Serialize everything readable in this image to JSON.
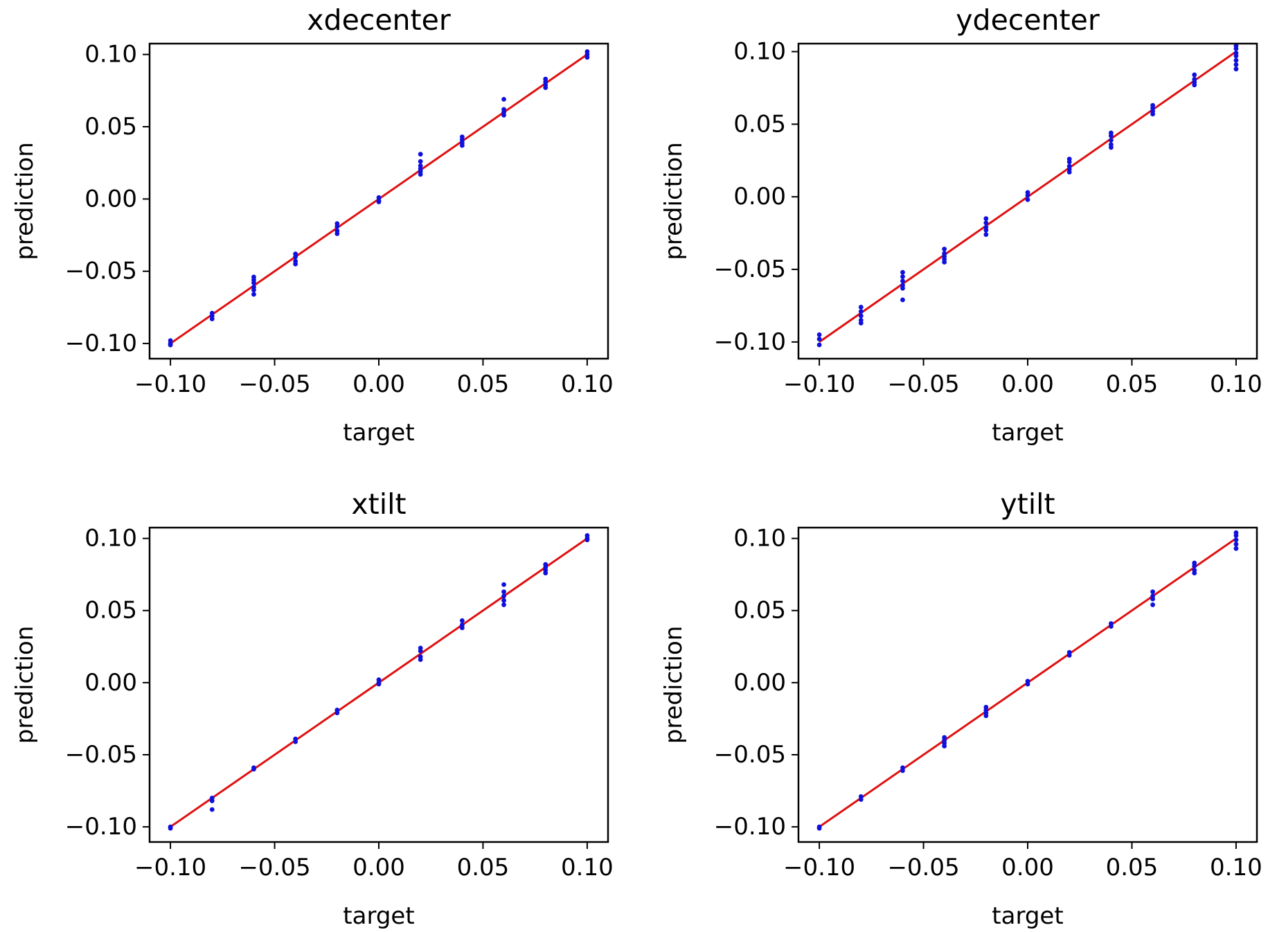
{
  "chart_data": [
    {
      "type": "scatter",
      "title": "xdecenter",
      "xlabel": "target",
      "ylabel": "prediction",
      "xlim": [
        -0.11,
        0.11
      ],
      "ylim": [
        -0.1105,
        0.1075
      ],
      "xticks": [
        "−0.10",
        "−0.05",
        "0.00",
        "0.05",
        "0.10"
      ],
      "yticks": [
        "−0.10",
        "−0.05",
        "0.00",
        "0.05",
        "0.10"
      ],
      "grid": false,
      "colors": {
        "points": "#1010dd",
        "line": "#e01010"
      },
      "reference_line": {
        "name": "y = x",
        "x": [
          -0.1,
          0.1
        ],
        "y": [
          -0.1,
          0.1
        ]
      },
      "series": [
        {
          "name": "predictions",
          "x": [
            -0.1,
            -0.1,
            -0.1,
            -0.08,
            -0.08,
            -0.08,
            -0.06,
            -0.06,
            -0.06,
            -0.06,
            -0.06,
            -0.06,
            -0.04,
            -0.04,
            -0.04,
            -0.04,
            -0.02,
            -0.02,
            -0.02,
            -0.02,
            0.0,
            0.0,
            0.0,
            0.02,
            0.02,
            0.02,
            0.02,
            0.02,
            0.02,
            0.04,
            0.04,
            0.04,
            0.04,
            0.06,
            0.06,
            0.06,
            0.06,
            0.08,
            0.08,
            0.08,
            0.08,
            0.1,
            0.1,
            0.1
          ],
          "y": [
            -0.098,
            -0.1,
            -0.101,
            -0.079,
            -0.081,
            -0.083,
            -0.054,
            -0.056,
            -0.058,
            -0.061,
            -0.063,
            -0.066,
            -0.038,
            -0.04,
            -0.043,
            -0.045,
            -0.017,
            -0.019,
            -0.022,
            -0.024,
            0.001,
            -0.001,
            -0.002,
            0.031,
            0.026,
            0.023,
            0.021,
            0.019,
            0.017,
            0.043,
            0.041,
            0.039,
            0.037,
            0.069,
            0.062,
            0.06,
            0.058,
            0.083,
            0.081,
            0.079,
            0.077,
            0.102,
            0.1,
            0.098
          ]
        }
      ]
    },
    {
      "type": "scatter",
      "title": "ydecenter",
      "xlabel": "target",
      "ylabel": "prediction",
      "xlim": [
        -0.11,
        0.11
      ],
      "ylim": [
        -0.1115,
        0.1055
      ],
      "xticks": [
        "−0.10",
        "−0.05",
        "0.00",
        "0.05",
        "0.10"
      ],
      "yticks": [
        "−0.10",
        "−0.05",
        "0.00",
        "0.05",
        "0.10"
      ],
      "grid": false,
      "colors": {
        "points": "#1010dd",
        "line": "#e01010"
      },
      "reference_line": {
        "name": "y = x",
        "x": [
          -0.1,
          0.1
        ],
        "y": [
          -0.1,
          0.1
        ]
      },
      "series": [
        {
          "name": "predictions",
          "x": [
            -0.1,
            -0.1,
            -0.1,
            -0.08,
            -0.08,
            -0.08,
            -0.08,
            -0.08,
            -0.06,
            -0.06,
            -0.06,
            -0.06,
            -0.06,
            -0.06,
            -0.04,
            -0.04,
            -0.04,
            -0.04,
            -0.04,
            -0.02,
            -0.02,
            -0.02,
            -0.02,
            -0.02,
            0.0,
            0.0,
            0.0,
            0.02,
            0.02,
            0.02,
            0.02,
            0.02,
            0.04,
            0.04,
            0.04,
            0.04,
            0.04,
            0.06,
            0.06,
            0.06,
            0.06,
            0.08,
            0.08,
            0.08,
            0.08,
            0.1,
            0.1,
            0.1,
            0.1,
            0.1,
            0.1,
            0.1
          ],
          "y": [
            -0.095,
            -0.098,
            -0.102,
            -0.076,
            -0.079,
            -0.082,
            -0.085,
            -0.087,
            -0.052,
            -0.055,
            -0.058,
            -0.061,
            -0.063,
            -0.071,
            -0.036,
            -0.039,
            -0.041,
            -0.043,
            -0.045,
            -0.015,
            -0.018,
            -0.021,
            -0.023,
            -0.026,
            0.003,
            0.001,
            -0.002,
            0.026,
            0.024,
            0.021,
            0.019,
            0.017,
            0.044,
            0.042,
            0.039,
            0.036,
            0.034,
            0.063,
            0.061,
            0.059,
            0.057,
            0.084,
            0.081,
            0.079,
            0.077,
            0.104,
            0.102,
            0.099,
            0.097,
            0.094,
            0.091,
            0.088
          ]
        }
      ]
    },
    {
      "type": "scatter",
      "title": "xtilt",
      "xlabel": "target",
      "ylabel": "prediction",
      "xlim": [
        -0.11,
        0.11
      ],
      "ylim": [
        -0.1105,
        0.1075
      ],
      "xticks": [
        "−0.10",
        "−0.05",
        "0.00",
        "0.05",
        "0.10"
      ],
      "yticks": [
        "−0.10",
        "−0.05",
        "0.00",
        "0.05",
        "0.10"
      ],
      "grid": false,
      "colors": {
        "points": "#1010dd",
        "line": "#e01010"
      },
      "reference_line": {
        "name": "y = x",
        "x": [
          -0.1,
          0.1
        ],
        "y": [
          -0.1,
          0.1
        ]
      },
      "series": [
        {
          "name": "predictions",
          "x": [
            -0.1,
            -0.1,
            -0.08,
            -0.08,
            -0.08,
            -0.06,
            -0.06,
            -0.04,
            -0.04,
            -0.02,
            -0.02,
            0.0,
            0.0,
            0.0,
            0.02,
            0.02,
            0.02,
            0.02,
            0.04,
            0.04,
            0.04,
            0.06,
            0.06,
            0.06,
            0.06,
            0.06,
            0.08,
            0.08,
            0.08,
            0.08,
            0.1,
            0.1,
            0.1
          ],
          "y": [
            -0.1,
            -0.101,
            -0.08,
            -0.082,
            -0.088,
            -0.059,
            -0.06,
            -0.039,
            -0.041,
            -0.019,
            -0.021,
            0.002,
            0.0,
            -0.001,
            0.024,
            0.022,
            0.018,
            0.016,
            0.043,
            0.04,
            0.038,
            0.068,
            0.063,
            0.06,
            0.057,
            0.054,
            0.082,
            0.08,
            0.078,
            0.076,
            0.102,
            0.1,
            0.099
          ]
        }
      ]
    },
    {
      "type": "scatter",
      "title": "ytilt",
      "xlabel": "target",
      "ylabel": "prediction",
      "xlim": [
        -0.11,
        0.11
      ],
      "ylim": [
        -0.1105,
        0.1075
      ],
      "xticks": [
        "−0.10",
        "−0.05",
        "0.00",
        "0.05",
        "0.10"
      ],
      "yticks": [
        "−0.10",
        "−0.05",
        "0.00",
        "0.05",
        "0.10"
      ],
      "grid": false,
      "colors": {
        "points": "#1010dd",
        "line": "#e01010"
      },
      "reference_line": {
        "name": "y = x",
        "x": [
          -0.1,
          0.1
        ],
        "y": [
          -0.1,
          0.1
        ]
      },
      "series": [
        {
          "name": "predictions",
          "x": [
            -0.1,
            -0.1,
            -0.08,
            -0.08,
            -0.06,
            -0.06,
            -0.04,
            -0.04,
            -0.04,
            -0.04,
            -0.02,
            -0.02,
            -0.02,
            -0.02,
            0.0,
            0.0,
            0.02,
            0.02,
            0.04,
            0.04,
            0.06,
            0.06,
            0.06,
            0.06,
            0.08,
            0.08,
            0.08,
            0.08,
            0.1,
            0.1,
            0.1,
            0.1,
            0.1
          ],
          "y": [
            -0.1,
            -0.101,
            -0.079,
            -0.081,
            -0.059,
            -0.061,
            -0.038,
            -0.04,
            -0.042,
            -0.044,
            -0.017,
            -0.019,
            -0.021,
            -0.023,
            0.001,
            -0.001,
            0.021,
            0.019,
            0.041,
            0.039,
            0.063,
            0.06,
            0.058,
            0.054,
            0.083,
            0.081,
            0.078,
            0.076,
            0.104,
            0.102,
            0.099,
            0.096,
            0.093
          ]
        }
      ]
    }
  ]
}
